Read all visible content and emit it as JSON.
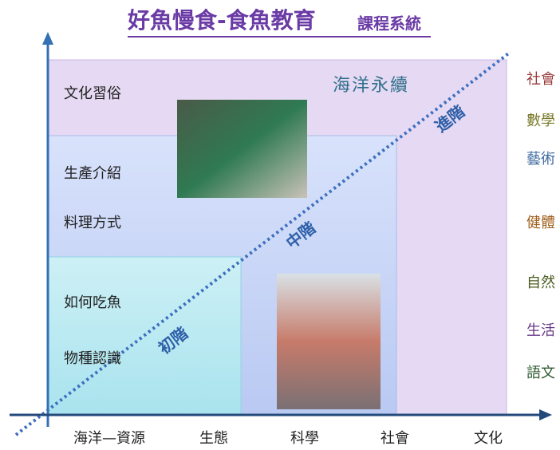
{
  "header": {
    "title": "好魚慢食-食魚教育",
    "subtitle": "課程系統"
  },
  "left_labels": [
    "文化習俗",
    "生產介紹",
    "料理方式",
    "如何吃魚",
    "物種認識"
  ],
  "top_label": "海洋永續",
  "levels": [
    "初階",
    "中階",
    "進階"
  ],
  "subjects": [
    "社會",
    "數學",
    "藝術",
    "健體",
    "自然",
    "生活",
    "語文"
  ],
  "x_axis_labels": [
    "海洋—資源",
    "生態",
    "科學",
    "社會",
    "文化"
  ]
}
